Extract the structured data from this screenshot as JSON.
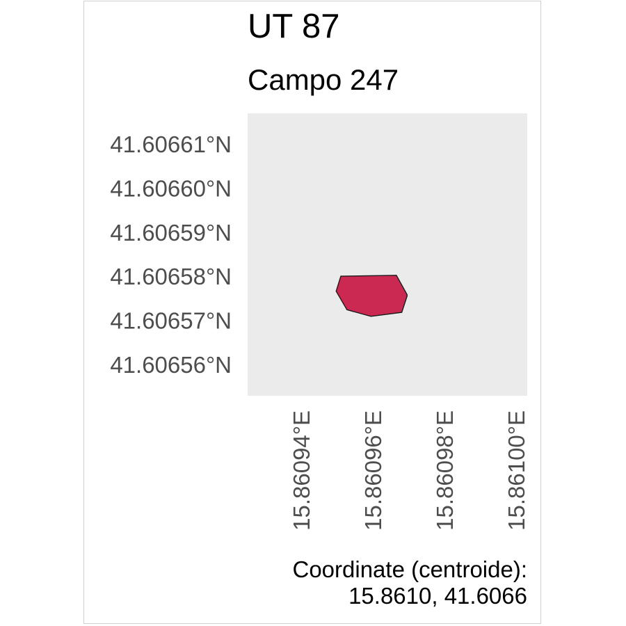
{
  "title": "UT 87",
  "subtitle": "Campo 247",
  "caption": {
    "line1": "Coordinate (centroide):",
    "line2": "15.8610, 41.6066"
  },
  "colors": {
    "panel_background": "#ebebeb",
    "polygon_fill": "#cc2952",
    "polygon_stroke": "#1a1a1a",
    "tick_text": "#4d4d4d"
  },
  "chart_data": {
    "type": "map",
    "geometry": "polygon",
    "xlim": [
      15.860925,
      15.861003
    ],
    "ylim": [
      41.606553,
      41.606617
    ],
    "x_ticks": [
      {
        "value": 15.86094,
        "label": "15.86094°E"
      },
      {
        "value": 15.86096,
        "label": "15.86096°E"
      },
      {
        "value": 15.86098,
        "label": "15.86098°E"
      },
      {
        "value": 15.861,
        "label": "15.86100°E"
      }
    ],
    "y_ticks": [
      {
        "value": 41.60656,
        "label": "41.60656°N"
      },
      {
        "value": 41.60657,
        "label": "41.60657°N"
      },
      {
        "value": 41.60658,
        "label": "41.60658°N"
      },
      {
        "value": 41.60659,
        "label": "41.60659°N"
      },
      {
        "value": 41.6066,
        "label": "41.60660°N"
      },
      {
        "value": 41.60661,
        "label": "41.60661°N"
      }
    ],
    "polygon": [
      [
        15.860951,
        41.6065801
      ],
      [
        15.8609665,
        41.6065803
      ],
      [
        15.8609695,
        41.6065759
      ],
      [
        15.8609695,
        41.6065756
      ],
      [
        15.860968,
        41.6065719
      ],
      [
        15.8609594,
        41.606571
      ],
      [
        15.8609527,
        41.6065725
      ],
      [
        15.8609497,
        41.6065767
      ]
    ],
    "grid": false
  }
}
